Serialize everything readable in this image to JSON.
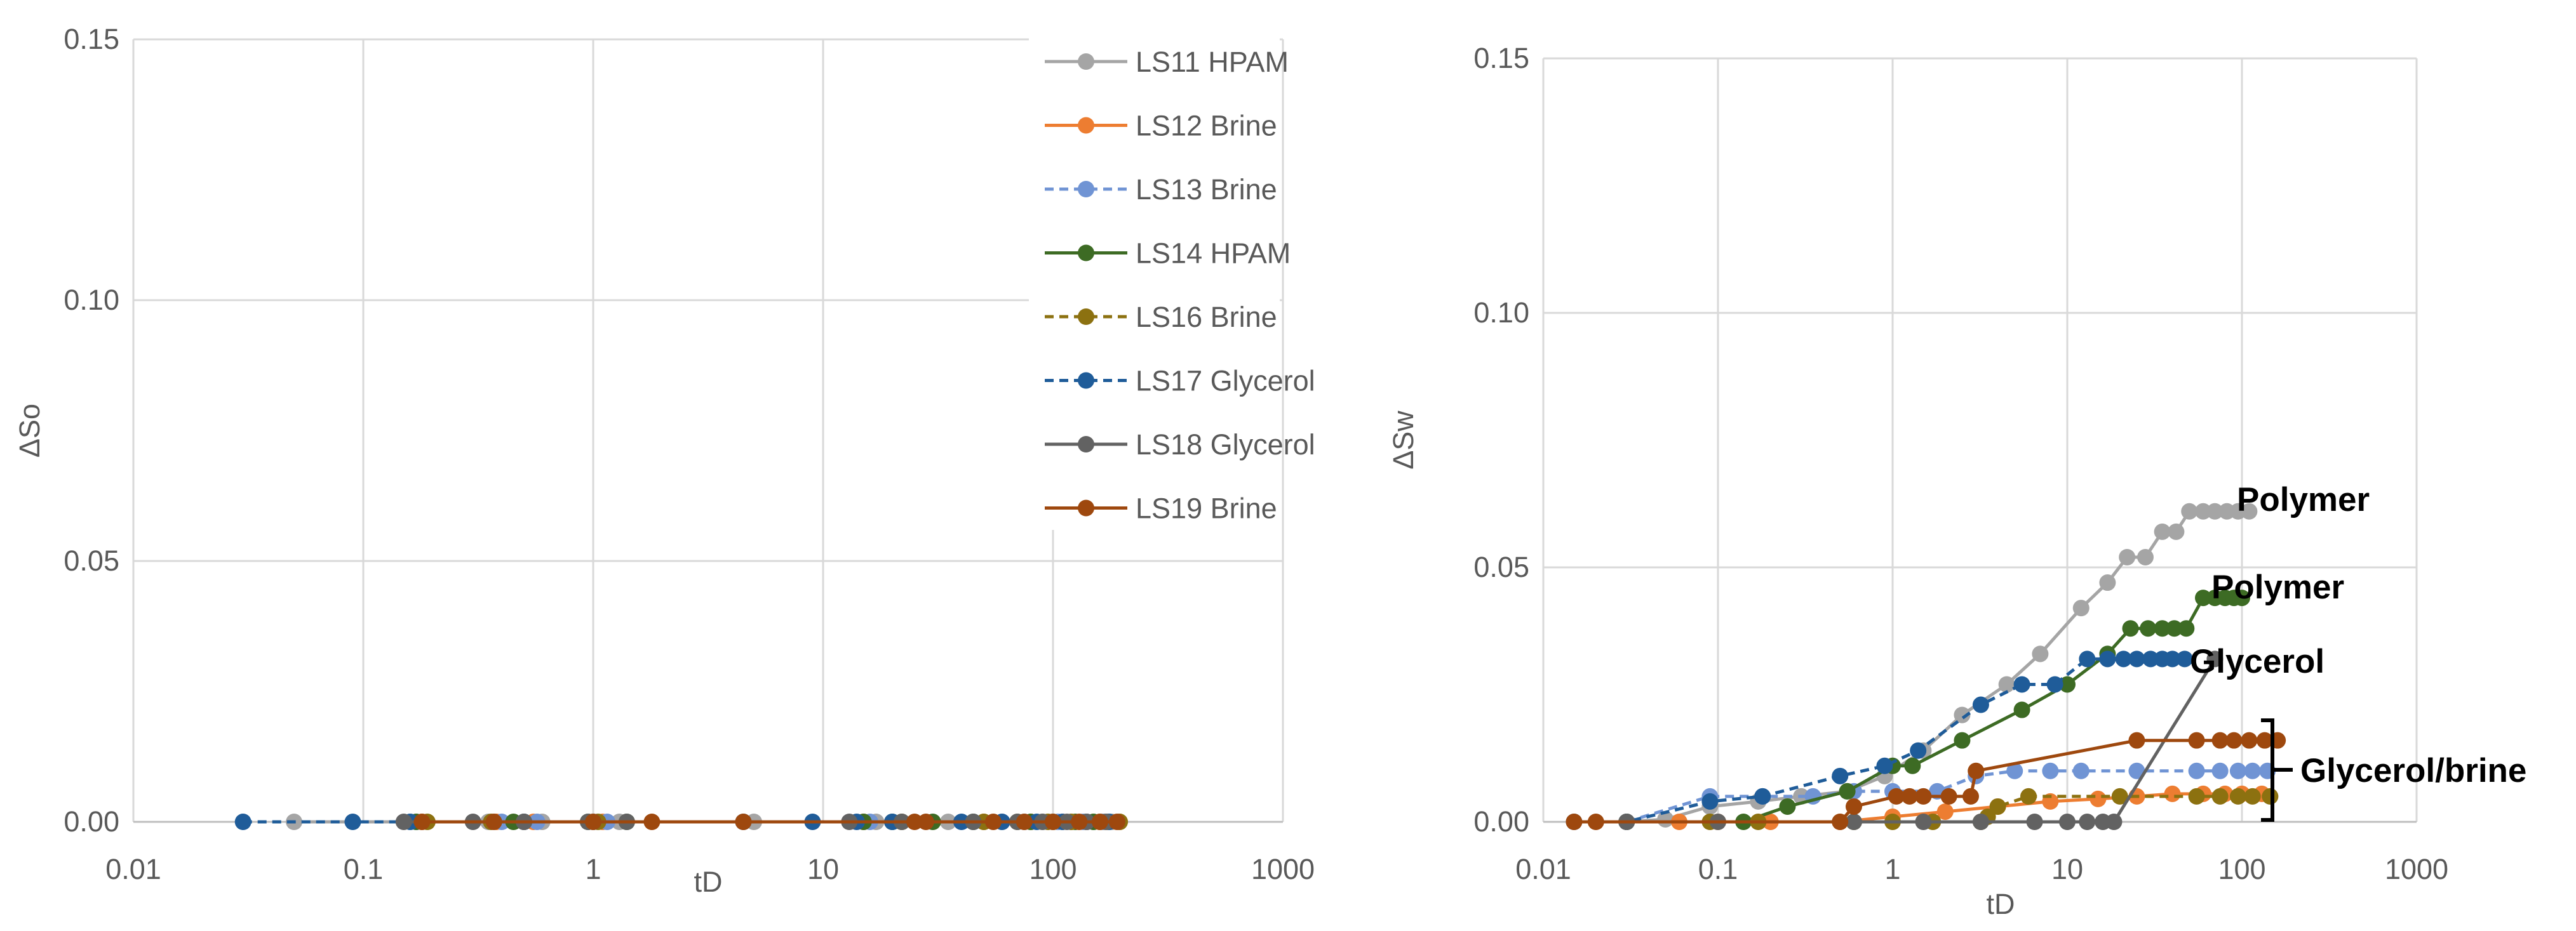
{
  "chart_data": [
    {
      "type": "scatter",
      "xscale": "log",
      "xlabel": "tD",
      "ylabel": "ΔSo",
      "xlim": [
        0.01,
        1000
      ],
      "ylim": [
        0,
        0.15
      ],
      "xticks": [
        "0.01",
        "0.1",
        "1",
        "10",
        "100",
        "1000"
      ],
      "yticks": [
        "0.00",
        "0.05",
        "0.10",
        "0.15"
      ],
      "grid": true,
      "legend": "right",
      "series": [
        {
          "name": "LS11 HPAM",
          "color": "#a5a5a5",
          "dash": false,
          "x": [
            0.05,
            0.16,
            0.35,
            0.6,
            1.3,
            5.0,
            17,
            35,
            60,
            90,
            120,
            150,
            180
          ],
          "y": [
            0,
            0,
            0,
            0,
            0,
            0,
            0,
            0,
            0,
            0,
            0,
            0,
            0
          ]
        },
        {
          "name": "LS12 Brine",
          "color": "#ed7d31",
          "dash": false,
          "x": [
            0.18,
            0.38,
            0.55,
            1.1,
            15,
            50,
            80,
            110,
            140,
            170,
            195
          ],
          "y": [
            0,
            0,
            0,
            0,
            0,
            0,
            0,
            0,
            0,
            0,
            0
          ]
        },
        {
          "name": "LS13 Brine",
          "color": "#7094d4",
          "dash": true,
          "x": [
            0.17,
            0.4,
            0.57,
            1.15,
            16,
            45,
            75,
            105,
            135,
            165
          ],
          "y": [
            0,
            0,
            0,
            0,
            0,
            0,
            0,
            0,
            0,
            0
          ]
        },
        {
          "name": "LS14 HPAM",
          "color": "#3d6b24",
          "dash": false,
          "x": [
            0.17,
            0.45,
            0.95,
            1.4,
            15,
            20,
            30,
            45,
            80,
            100,
            125,
            150,
            175
          ],
          "y": [
            0,
            0,
            0,
            0,
            0,
            0,
            0,
            0,
            0,
            0,
            0,
            0,
            0
          ]
        },
        {
          "name": "LS16 Brine",
          "color": "#8c7110",
          "dash": true,
          "x": [
            0.19,
            0.36,
            0.5,
            1.05,
            22,
            50,
            70,
            95,
            120,
            160,
            195
          ],
          "y": [
            0,
            0,
            0,
            0,
            0,
            0,
            0,
            0,
            0,
            0,
            0
          ]
        },
        {
          "name": "LS17 Glycerol",
          "color": "#1f5c99",
          "dash": true,
          "x": [
            0.03,
            0.09,
            0.16,
            0.5,
            1.0,
            4.5,
            9,
            14,
            20,
            40,
            60,
            85,
            110,
            140,
            175
          ],
          "y": [
            0,
            0,
            0,
            0,
            0,
            0,
            0,
            0,
            0,
            0,
            0,
            0,
            0,
            0,
            0
          ]
        },
        {
          "name": "LS18 Glycerol",
          "color": "#626262",
          "dash": false,
          "x": [
            0.15,
            0.3,
            0.5,
            0.95,
            1.4,
            13,
            22,
            45,
            70,
            90,
            115,
            140,
            170
          ],
          "y": [
            0,
            0,
            0,
            0,
            0,
            0,
            0,
            0,
            0,
            0,
            0,
            0,
            0
          ]
        },
        {
          "name": "LS19 Brine",
          "color": "#9e480e",
          "dash": false,
          "x": [
            0.18,
            0.37,
            1.0,
            1.8,
            4.5,
            25,
            28,
            55,
            75,
            100,
            130,
            160,
            190
          ],
          "y": [
            0,
            0,
            0,
            0,
            0,
            0,
            0,
            0,
            0,
            0,
            0,
            0,
            0
          ]
        }
      ]
    },
    {
      "type": "scatter",
      "xscale": "log",
      "xlabel": "tD",
      "ylabel": "ΔSw",
      "xlim": [
        0.01,
        1000
      ],
      "ylim": [
        0,
        0.15
      ],
      "xticks": [
        "0.01",
        "0.1",
        "1",
        "10",
        "100",
        "1000"
      ],
      "yticks": [
        "0.00",
        "0.05",
        "0.10",
        "0.15"
      ],
      "grid": true,
      "annotations": [
        "Polymer",
        "Polymer",
        "Glycerol",
        "Glycerol/brine"
      ],
      "series": [
        {
          "name": "LS11 HPAM",
          "color": "#a5a5a5",
          "dash": false,
          "x": [
            0.03,
            0.05,
            0.09,
            0.17,
            0.3,
            0.55,
            0.9,
            1.5,
            2.5,
            4.5,
            7,
            12,
            17,
            22,
            28,
            35,
            42,
            50,
            60,
            70,
            82,
            95,
            110
          ],
          "y": [
            0,
            0.0005,
            0.003,
            0.004,
            0.005,
            0.006,
            0.009,
            0.014,
            0.021,
            0.027,
            0.033,
            0.042,
            0.047,
            0.052,
            0.052,
            0.057,
            0.057,
            0.061,
            0.061,
            0.061,
            0.061,
            0.061,
            0.061
          ]
        },
        {
          "name": "LS12 Brine",
          "color": "#ed7d31",
          "dash": false,
          "x": [
            0.03,
            0.06,
            0.1,
            0.2,
            0.5,
            1.0,
            2.0,
            4.0,
            8.0,
            15,
            25,
            40,
            60,
            80,
            100,
            130
          ],
          "y": [
            0,
            0,
            0,
            0,
            0,
            0.001,
            0.002,
            0.003,
            0.004,
            0.0045,
            0.005,
            0.0055,
            0.0055,
            0.0055,
            0.0055,
            0.0055
          ]
        },
        {
          "name": "LS13 Brine",
          "color": "#7094d4",
          "dash": true,
          "x": [
            0.03,
            0.09,
            0.18,
            0.35,
            0.6,
            1.0,
            1.8,
            3.0,
            5.0,
            8.0,
            12,
            25,
            55,
            75,
            95,
            115,
            140
          ],
          "y": [
            0,
            0.005,
            0.005,
            0.005,
            0.006,
            0.006,
            0.006,
            0.009,
            0.01,
            0.01,
            0.01,
            0.01,
            0.01,
            0.01,
            0.01,
            0.01,
            0.01
          ]
        },
        {
          "name": "LS14 HPAM",
          "color": "#3d6b24",
          "dash": false,
          "x": [
            0.03,
            0.14,
            0.25,
            0.55,
            1.0,
            1.3,
            2.5,
            5.5,
            10,
            17,
            23,
            29,
            35,
            41,
            48,
            60,
            70,
            80,
            90,
            100
          ],
          "y": [
            0,
            0,
            0.003,
            0.006,
            0.011,
            0.011,
            0.016,
            0.022,
            0.027,
            0.033,
            0.038,
            0.038,
            0.038,
            0.038,
            0.038,
            0.044,
            0.044,
            0.044,
            0.044,
            0.044
          ]
        },
        {
          "name": "LS16 Brine",
          "color": "#8c7110",
          "dash": true,
          "x": [
            0.03,
            0.09,
            0.17,
            0.6,
            1.0,
            1.7,
            3.2,
            3.5,
            4.0,
            6.0,
            20,
            55,
            75,
            95,
            115,
            145
          ],
          "y": [
            0,
            0,
            0,
            0,
            0,
            0,
            0,
            0.001,
            0.003,
            0.005,
            0.005,
            0.005,
            0.005,
            0.005,
            0.005,
            0.005
          ]
        },
        {
          "name": "LS17 Glycerol",
          "color": "#1f5c99",
          "dash": true,
          "x": [
            0.015,
            0.03,
            0.09,
            0.18,
            0.5,
            0.9,
            1.4,
            3.2,
            5.5,
            8.5,
            13,
            17,
            21,
            25,
            30,
            35,
            40,
            47
          ],
          "y": [
            0,
            0,
            0.004,
            0.005,
            0.009,
            0.011,
            0.014,
            0.023,
            0.027,
            0.027,
            0.032,
            0.032,
            0.032,
            0.032,
            0.032,
            0.032,
            0.032,
            0.032
          ]
        },
        {
          "name": "LS18 Glycerol",
          "color": "#626262",
          "dash": false,
          "x": [
            0.03,
            0.1,
            0.6,
            1.5,
            3.2,
            6.5,
            10,
            13,
            16,
            18.5,
            70
          ],
          "y": [
            0,
            0,
            0,
            0,
            0,
            0,
            0,
            0,
            0,
            0,
            0.032
          ]
        },
        {
          "name": "LS19 Brine",
          "color": "#9e480e",
          "dash": false,
          "x": [
            0.015,
            0.02,
            0.5,
            0.6,
            1.05,
            1.25,
            1.5,
            2.1,
            2.8,
            3.0,
            25,
            55,
            75,
            90,
            110,
            135,
            160
          ],
          "y": [
            0,
            0,
            0,
            0.003,
            0.005,
            0.005,
            0.005,
            0.005,
            0.005,
            0.01,
            0.016,
            0.016,
            0.016,
            0.016,
            0.016,
            0.016,
            0.016
          ]
        }
      ]
    }
  ]
}
